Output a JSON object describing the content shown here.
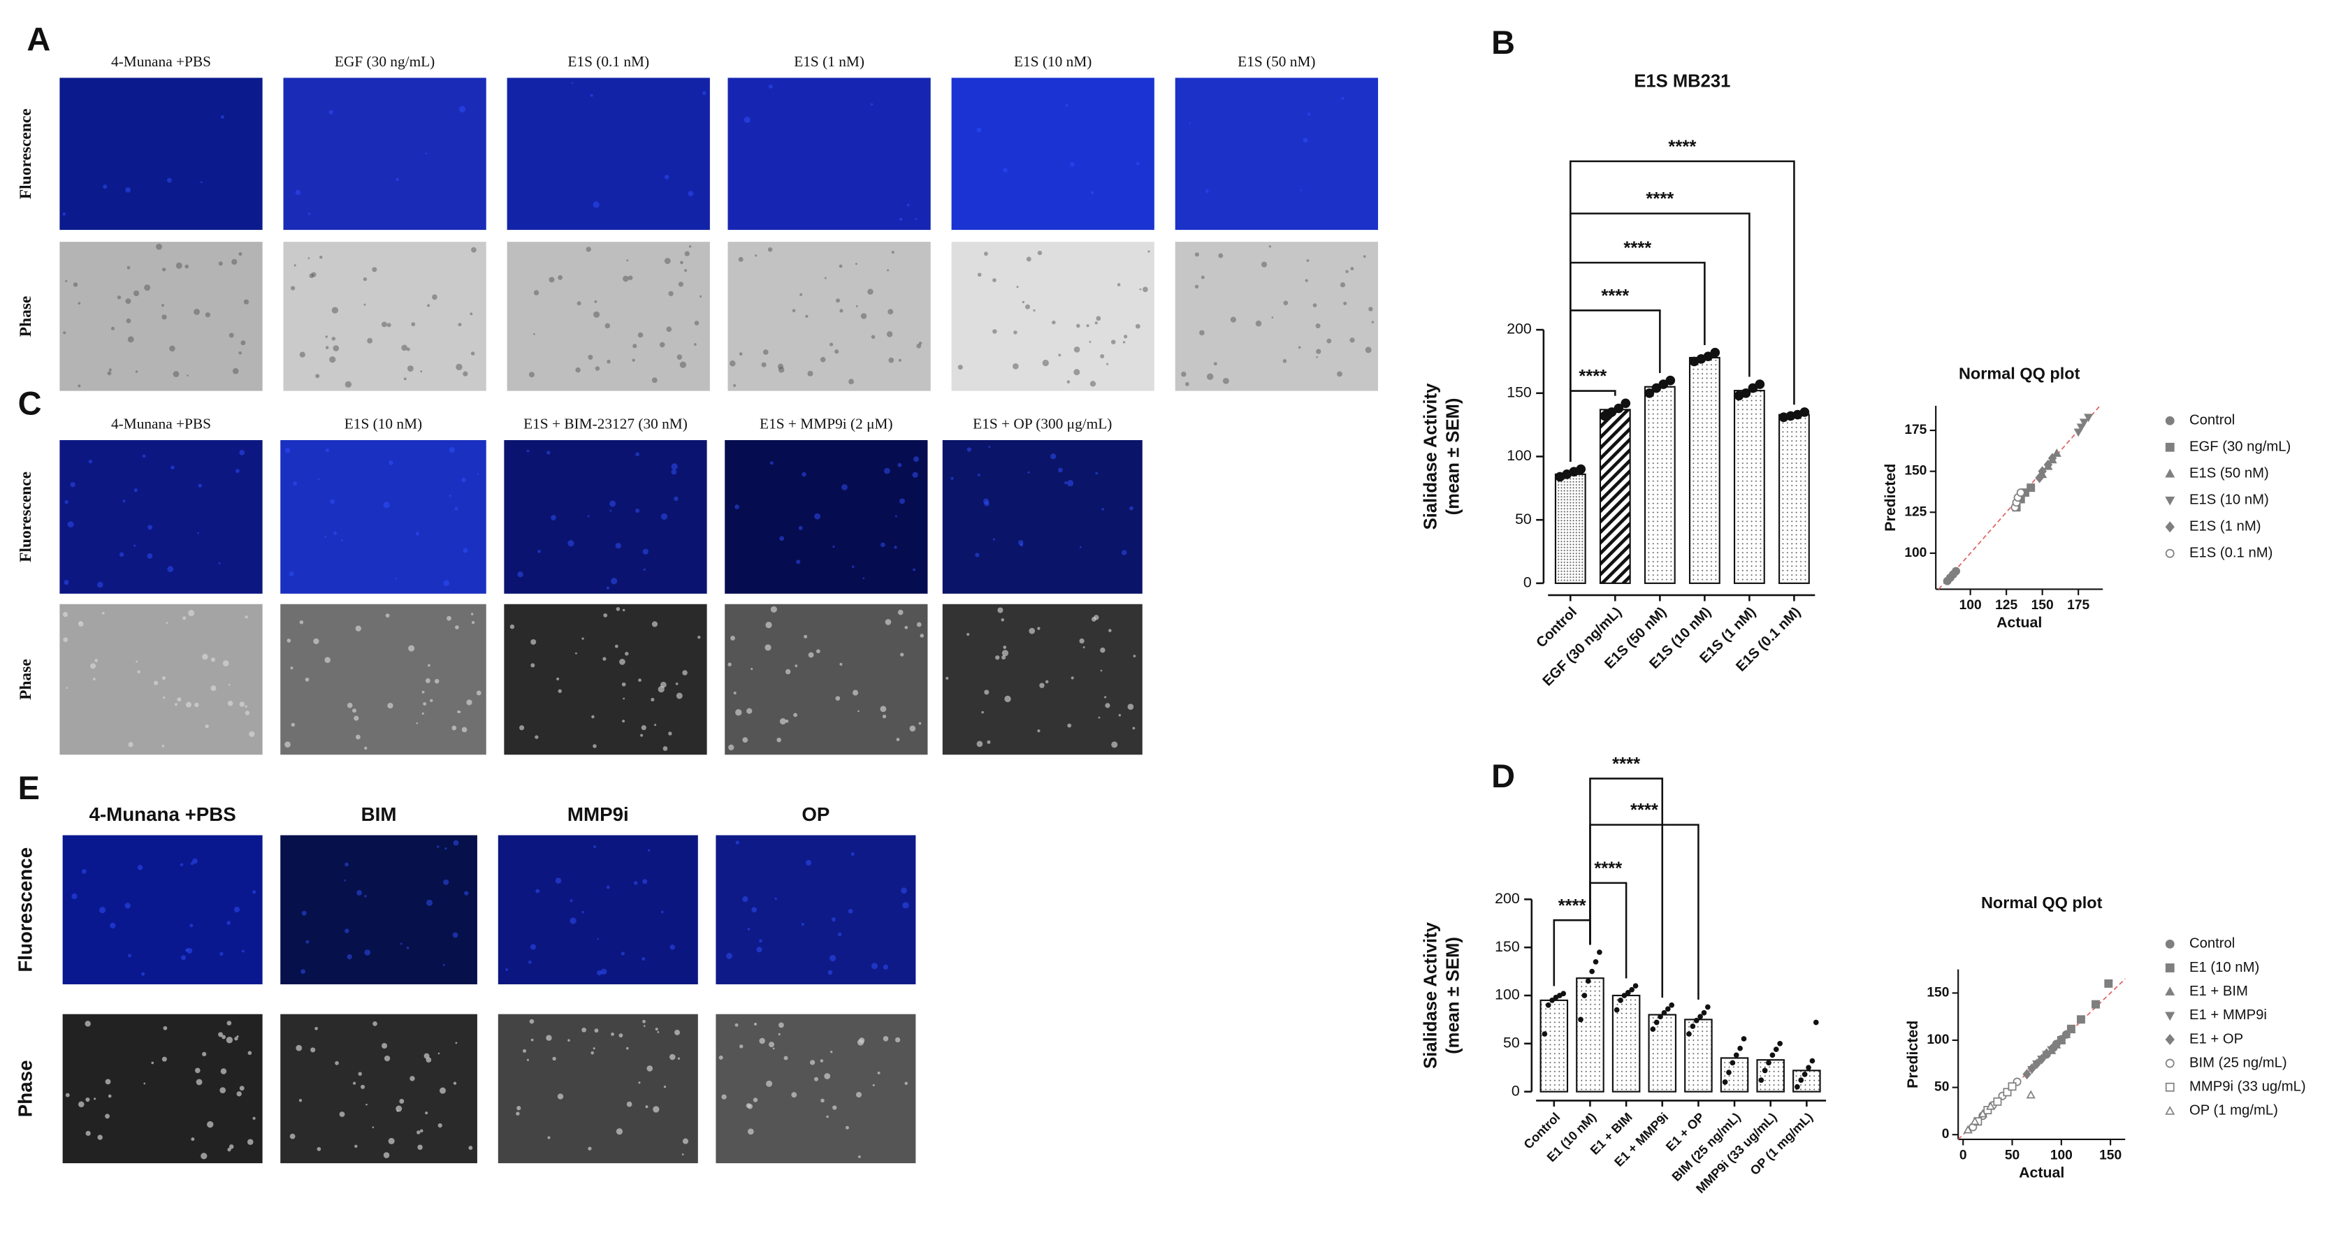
{
  "panels": {
    "A": {
      "label": "A",
      "columns": [
        "4-Munana +PBS",
        "EGF (30 ng/mL)",
        "E1S (0.1 nM)",
        "E1S (1 nM)",
        "E1S (10 nM)",
        "E1S (50 nM)"
      ],
      "rows": [
        "Fluorescence",
        "Phase"
      ]
    },
    "C": {
      "label": "C",
      "columns": [
        "4-Munana +PBS",
        "E1S (10 nM)",
        "E1S + BIM-23127 (30 nM)",
        "E1S + MMP9i (2 μM)",
        "E1S + OP (300 μg/mL)"
      ],
      "rows": [
        "Fluorescence",
        "Phase"
      ]
    },
    "E": {
      "label": "E",
      "columns": [
        "4-Munana +PBS",
        "BIM",
        "MMP9i",
        "OP"
      ],
      "rows": [
        "Fluorescence",
        "Phase"
      ]
    }
  },
  "chart_data": [
    {
      "type": "bar",
      "panel": "B",
      "title": "E1S MB231",
      "y_label": "Sialidase Activity",
      "y_label_sub": "(mean ± SEM)",
      "categories": [
        "Control",
        "EGF (30 ng/mL)",
        "E1S (50 nM)",
        "E1S (10 nM)",
        "E1S (1 nM)",
        "E1S (0.1 nM)"
      ],
      "values": [
        86,
        137,
        155,
        178,
        152,
        133
      ],
      "points": [
        [
          84,
          86,
          88,
          90
        ],
        [
          132,
          135,
          138,
          142
        ],
        [
          150,
          154,
          157,
          160
        ],
        [
          175,
          177,
          179,
          182
        ],
        [
          148,
          150,
          154,
          157
        ],
        [
          131,
          132,
          133,
          135
        ]
      ],
      "ylim": [
        0,
        200
      ],
      "yticks": [
        0,
        50,
        100,
        150,
        200
      ],
      "annotations": [
        "****",
        "****",
        "****",
        "****",
        "****"
      ]
    },
    {
      "type": "scatter",
      "title": "Normal QQ plot",
      "x_label": "Actual",
      "y_label": "Predicted",
      "xlim": [
        76,
        192
      ],
      "ylim": [
        78,
        190
      ],
      "xticks": [
        100,
        125,
        150,
        175
      ],
      "yticks": [
        100,
        125,
        150,
        175
      ],
      "series": [
        {
          "name": "Control",
          "marker": "circle",
          "color": "#7f7f7f",
          "x": [
            84,
            86,
            88,
            90
          ],
          "values": [
            83,
            85,
            87,
            89
          ]
        },
        {
          "name": "EGF (30 ng/mL)",
          "marker": "square",
          "color": "#7f7f7f",
          "x": [
            132,
            135,
            138,
            142
          ],
          "values": [
            128,
            133,
            137,
            140
          ]
        },
        {
          "name": "E1S (50 nM)",
          "marker": "triangle-up",
          "color": "#7f7f7f",
          "x": [
            150,
            154,
            157,
            160
          ],
          "values": [
            148,
            153,
            157,
            161
          ]
        },
        {
          "name": "E1S (10 nM)",
          "marker": "triangle-down",
          "color": "#7f7f7f",
          "x": [
            175,
            177,
            179,
            182
          ],
          "values": [
            174,
            177,
            180,
            183
          ]
        },
        {
          "name": "E1S (1 nM)",
          "marker": "diamond",
          "color": "#7f7f7f",
          "x": [
            148,
            150,
            154,
            157
          ],
          "values": [
            146,
            150,
            154,
            158
          ]
        },
        {
          "name": "E1S (0.1 nM)",
          "marker": "circle-open",
          "color": "#7f7f7f",
          "x": [
            131,
            132,
            133,
            135
          ],
          "values": [
            128,
            131,
            134,
            137
          ]
        }
      ]
    },
    {
      "type": "bar",
      "panel": "D",
      "y_label": "Sialidase Activity",
      "y_label_sub": "(mean ± SEM)",
      "categories": [
        "Control",
        "E1 (10 nM)",
        "E1 + BIM",
        "E1 + MMP9i",
        "E1 + OP",
        "BIM (25 ng/mL)",
        "MMP9i (33 ug/mL)",
        "OP (1 mg/mL)"
      ],
      "values": [
        95,
        118,
        100,
        80,
        75,
        35,
        33,
        22
      ],
      "points": [
        [
          60,
          90,
          95,
          98,
          100,
          102
        ],
        [
          75,
          100,
          115,
          125,
          135,
          145
        ],
        [
          85,
          95,
          100,
          103,
          106,
          110
        ],
        [
          65,
          72,
          78,
          82,
          86,
          90
        ],
        [
          60,
          68,
          74,
          78,
          82,
          88
        ],
        [
          10,
          20,
          30,
          38,
          45,
          55
        ],
        [
          12,
          22,
          30,
          38,
          44,
          50
        ],
        [
          5,
          12,
          18,
          25,
          32,
          72
        ]
      ],
      "ylim": [
        0,
        200
      ],
      "yticks": [
        0,
        50,
        100,
        150,
        200
      ],
      "annotations": [
        "****",
        "****",
        "****",
        "****"
      ]
    },
    {
      "type": "scatter",
      "title": "Normal QQ plot",
      "x_label": "Actual",
      "y_label": "Predicted",
      "xlim": [
        -5,
        165
      ],
      "ylim": [
        -5,
        175
      ],
      "xticks": [
        0,
        50,
        100,
        150
      ],
      "yticks": [
        0,
        50,
        100,
        150
      ],
      "series": [
        {
          "name": "Control",
          "marker": "circle",
          "color": "#7f7f7f",
          "x": [
            85,
            92,
            95,
            100,
            105
          ],
          "values": [
            85,
            92,
            96,
            101,
            106
          ]
        },
        {
          "name": "E1 (10 nM)",
          "marker": "square",
          "color": "#7f7f7f",
          "x": [
            100,
            110,
            120,
            135,
            148
          ],
          "values": [
            100,
            112,
            122,
            138,
            160
          ]
        },
        {
          "name": "E1 + BIM",
          "marker": "triangle-up",
          "color": "#7f7f7f",
          "x": [
            90,
            95,
            100,
            105,
            110
          ],
          "values": [
            89,
            95,
            100,
            106,
            111
          ]
        },
        {
          "name": "E1 + MMP9i",
          "marker": "triangle-down",
          "color": "#7f7f7f",
          "x": [
            70,
            75,
            80,
            85,
            90
          ],
          "values": [
            69,
            75,
            80,
            85,
            90
          ]
        },
        {
          "name": "E1 + OP",
          "marker": "diamond",
          "color": "#7f7f7f",
          "x": [
            65,
            70,
            75,
            80,
            85
          ],
          "values": [
            64,
            70,
            75,
            80,
            86
          ]
        },
        {
          "name": "BIM (25 ng/mL)",
          "marker": "circle-open",
          "color": "#7f7f7f",
          "x": [
            10,
            20,
            30,
            40,
            55
          ],
          "values": [
            8,
            20,
            31,
            41,
            56
          ]
        },
        {
          "name": "MMP9i (33 ug/mL)",
          "marker": "square-open",
          "color": "#7f7f7f",
          "x": [
            15,
            25,
            35,
            45,
            50
          ],
          "values": [
            14,
            26,
            35,
            45,
            51
          ]
        },
        {
          "name": "OP (1 mg/mL)",
          "marker": "triangle-open",
          "color": "#7f7f7f",
          "x": [
            5,
            12,
            20,
            28,
            69
          ],
          "values": [
            5,
            14,
            22,
            30,
            42
          ]
        }
      ]
    }
  ]
}
